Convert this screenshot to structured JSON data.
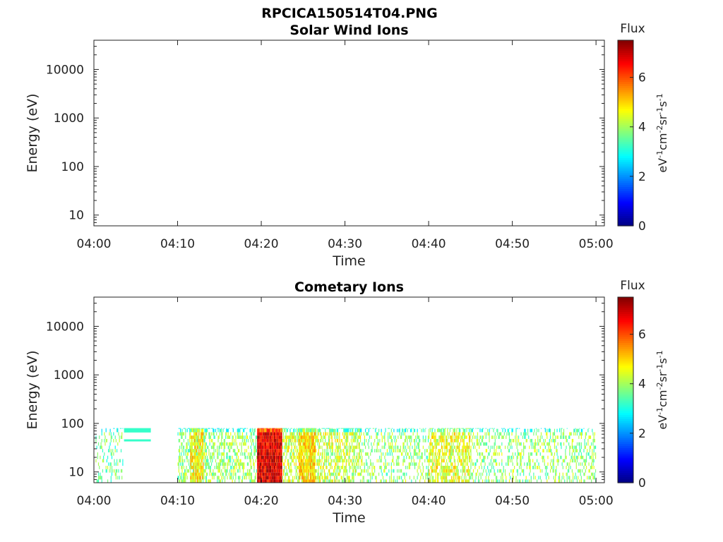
{
  "figure_title": "RPCICA150514T04.PNG",
  "chart_data": [
    {
      "type": "heatmap",
      "title": "Solar Wind Ions",
      "xlabel": "Time",
      "ylabel": "Energy (eV)",
      "x_ticks": [
        "04:00",
        "04:10",
        "04:20",
        "04:30",
        "04:40",
        "04:50",
        "05:00"
      ],
      "xlim_minutes": [
        0,
        61
      ],
      "y_scale": "log",
      "y_ticks": [
        "10",
        "100",
        "1000",
        "10000"
      ],
      "ylim": [
        6,
        40000
      ],
      "colorbar": {
        "title": "Flux",
        "label": "eV-1cm-2sr-1s-1",
        "ticks": [
          "0",
          "2",
          "4",
          "6"
        ],
        "range": [
          0,
          7.5
        ],
        "colormap": "jet"
      },
      "grid": false,
      "data": []
    },
    {
      "type": "heatmap",
      "title": "Cometary Ions",
      "xlabel": "Time",
      "ylabel": "Energy (eV)",
      "x_ticks": [
        "04:00",
        "04:10",
        "04:20",
        "04:30",
        "04:40",
        "04:50",
        "05:00"
      ],
      "xlim_minutes": [
        0,
        61
      ],
      "y_scale": "log",
      "y_ticks": [
        "10",
        "100",
        "1000",
        "10000"
      ],
      "ylim": [
        6,
        40000
      ],
      "colorbar": {
        "title": "Flux",
        "label": "eV-1cm-2sr-1s-1",
        "ticks": [
          "0",
          "2",
          "4",
          "6"
        ],
        "range": [
          0,
          7.5
        ],
        "colormap": "jet"
      },
      "grid": false,
      "energy_range_eV": [
        6,
        80
      ],
      "regions": [
        {
          "t_start_min": 0.2,
          "t_end_min": 3.5,
          "mean_flux": 3.6,
          "density": 0.25
        },
        {
          "t_start_min": 3.6,
          "t_end_min": 6.8,
          "e_low_eV": 65,
          "e_high_eV": 80,
          "mean_flux": 3.2,
          "density": 1.0
        },
        {
          "t_start_min": 3.6,
          "t_end_min": 6.8,
          "e_low_eV": 43,
          "e_high_eV": 47,
          "mean_flux": 3.2,
          "density": 1.0
        },
        {
          "t_start_min": 10.0,
          "t_end_min": 19.5,
          "mean_flux": 3.9,
          "density": 0.45
        },
        {
          "t_start_min": 11.5,
          "t_end_min": 13.0,
          "mean_flux": 4.8,
          "density": 0.8
        },
        {
          "t_start_min": 19.5,
          "t_end_min": 22.5,
          "mean_flux": 6.8,
          "density": 1.0
        },
        {
          "t_start_min": 22.5,
          "t_end_min": 32.0,
          "mean_flux": 4.3,
          "density": 0.55
        },
        {
          "t_start_min": 24.5,
          "t_end_min": 26.5,
          "mean_flux": 4.9,
          "density": 0.85
        },
        {
          "t_start_min": 32.0,
          "t_end_min": 40.0,
          "mean_flux": 3.9,
          "density": 0.3
        },
        {
          "t_start_min": 40.0,
          "t_end_min": 45.0,
          "mean_flux": 4.5,
          "density": 0.6
        },
        {
          "t_start_min": 45.0,
          "t_end_min": 60.0,
          "mean_flux": 3.9,
          "density": 0.3
        }
      ]
    }
  ]
}
